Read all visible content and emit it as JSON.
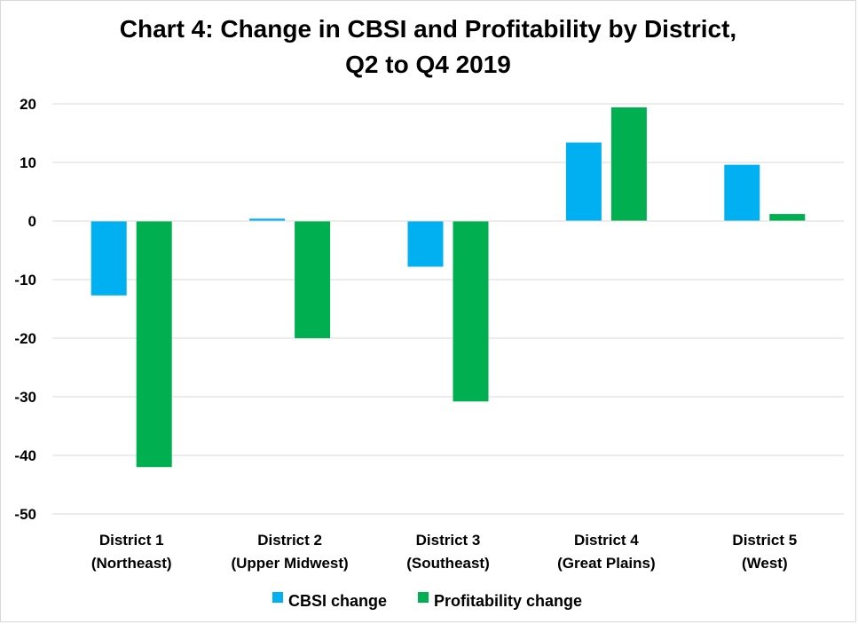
{
  "chart_data": {
    "type": "bar",
    "title": [
      "Chart 4: Change in CBSI and Profitability by District,",
      "Q2 to Q4 2019"
    ],
    "categories": [
      [
        "District 1",
        "(Northeast)"
      ],
      [
        "District 2",
        "(Upper Midwest)"
      ],
      [
        "District 3",
        "(Southeast)"
      ],
      [
        "District 4",
        "(Great Plains)"
      ],
      [
        "District 5",
        "(West)"
      ]
    ],
    "series": [
      {
        "name": "CBSI change",
        "color": "#00b0f0",
        "values": [
          -12.7,
          0.4,
          -7.8,
          13.4,
          9.6
        ]
      },
      {
        "name": "Profitability change",
        "color": "#00b050",
        "values": [
          -42.0,
          -20.0,
          -30.8,
          19.4,
          1.2
        ]
      }
    ],
    "ylim": [
      -50,
      20
    ],
    "yticks": [
      20,
      10,
      0,
      -10,
      -20,
      -30,
      -40,
      -50
    ],
    "grid": true,
    "legend_position": "bottom"
  }
}
